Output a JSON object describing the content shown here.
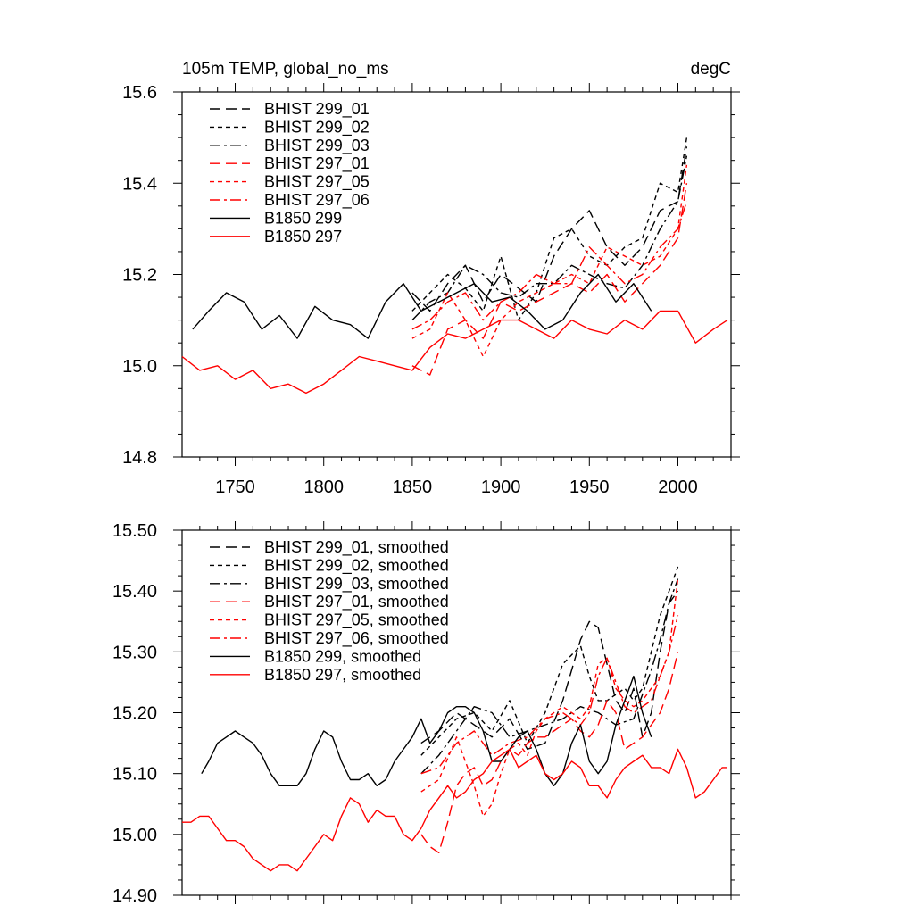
{
  "chart_data": [
    {
      "type": "line",
      "title_left": "105m TEMP, global_no_ms",
      "title_right": "degC",
      "xlim": [
        1720,
        2030
      ],
      "ylim": [
        14.8,
        15.6
      ],
      "xticks": [
        1750,
        1800,
        1850,
        1900,
        1950,
        2000
      ],
      "xtick_labels": [
        "1750",
        "1800",
        "1850",
        "1900",
        "1950",
        "2000"
      ],
      "yticks": [
        14.8,
        15.0,
        15.2,
        15.4,
        15.6
      ],
      "ytick_labels": [
        "14.8",
        "15.0",
        "15.2",
        "15.4",
        "15.6"
      ],
      "series": [
        {
          "name": "BHIST 299_01",
          "color": "#000000",
          "dash": "long-dash",
          "x": [
            1850,
            1860,
            1870,
            1880,
            1890,
            1900,
            1910,
            1920,
            1930,
            1940,
            1950,
            1960,
            1970,
            1980,
            1990,
            2000,
            2005
          ],
          "y": [
            15.16,
            15.12,
            15.18,
            15.22,
            15.14,
            15.2,
            15.17,
            15.14,
            15.24,
            15.3,
            15.34,
            15.26,
            15.22,
            15.26,
            15.34,
            15.36,
            15.48
          ]
        },
        {
          "name": "BHIST 299_02",
          "color": "#000000",
          "dash": "short-dash",
          "x": [
            1850,
            1860,
            1870,
            1880,
            1890,
            1900,
            1910,
            1920,
            1930,
            1940,
            1950,
            1960,
            1970,
            1980,
            1990,
            2000,
            2005
          ],
          "y": [
            15.12,
            15.16,
            15.2,
            15.17,
            15.12,
            15.24,
            15.1,
            15.16,
            15.28,
            15.3,
            15.24,
            15.22,
            15.26,
            15.28,
            15.4,
            15.38,
            15.5
          ]
        },
        {
          "name": "BHIST 299_03",
          "color": "#000000",
          "dash": "dash-dot",
          "x": [
            1850,
            1860,
            1870,
            1880,
            1890,
            1900,
            1910,
            1920,
            1930,
            1940,
            1950,
            1960,
            1970,
            1980,
            1990,
            2000,
            2005
          ],
          "y": [
            15.1,
            15.14,
            15.16,
            15.22,
            15.2,
            15.16,
            15.15,
            15.18,
            15.18,
            15.22,
            15.2,
            15.18,
            15.17,
            15.22,
            15.3,
            15.36,
            15.46
          ]
        },
        {
          "name": "BHIST 297_01",
          "color": "#ff0000",
          "dash": "long-dash",
          "x": [
            1850,
            1860,
            1870,
            1880,
            1890,
            1900,
            1910,
            1920,
            1930,
            1940,
            1950,
            1960,
            1970,
            1980,
            1990,
            2000,
            2005
          ],
          "y": [
            15.0,
            14.98,
            15.08,
            15.1,
            15.06,
            15.14,
            15.12,
            15.14,
            15.16,
            15.18,
            15.16,
            15.2,
            15.14,
            15.18,
            15.22,
            15.28,
            15.4
          ]
        },
        {
          "name": "BHIST 297_05",
          "color": "#ff0000",
          "dash": "short-dash",
          "x": [
            1850,
            1860,
            1870,
            1880,
            1890,
            1900,
            1910,
            1920,
            1930,
            1940,
            1950,
            1960,
            1970,
            1980,
            1990,
            2000,
            2005
          ],
          "y": [
            15.06,
            15.08,
            15.16,
            15.1,
            15.02,
            15.1,
            15.14,
            15.16,
            15.18,
            15.2,
            15.18,
            15.26,
            15.24,
            15.22,
            15.24,
            15.3,
            15.44
          ]
        },
        {
          "name": "BHIST 297_06",
          "color": "#ff0000",
          "dash": "dash-dot",
          "x": [
            1850,
            1860,
            1870,
            1880,
            1890,
            1900,
            1910,
            1920,
            1930,
            1940,
            1950,
            1960,
            1970,
            1980,
            1990,
            2000,
            2005
          ],
          "y": [
            15.08,
            15.1,
            15.14,
            15.16,
            15.1,
            15.14,
            15.16,
            15.2,
            15.18,
            15.18,
            15.26,
            15.22,
            15.18,
            15.2,
            15.26,
            15.3,
            15.36
          ]
        },
        {
          "name": "B1850 299",
          "color": "#000000",
          "dash": "solid",
          "x": [
            1726,
            1735,
            1745,
            1755,
            1765,
            1775,
            1785,
            1795,
            1805,
            1815,
            1825,
            1835,
            1845,
            1855,
            1865,
            1875,
            1885,
            1895,
            1905,
            1915,
            1925,
            1935,
            1945,
            1955,
            1965,
            1975,
            1985
          ],
          "y": [
            15.08,
            15.12,
            15.16,
            15.14,
            15.08,
            15.11,
            15.06,
            15.13,
            15.1,
            15.09,
            15.06,
            15.14,
            15.18,
            15.12,
            15.14,
            15.16,
            15.18,
            15.14,
            15.15,
            15.12,
            15.08,
            15.1,
            15.16,
            15.2,
            15.14,
            15.18,
            15.12
          ]
        },
        {
          "name": "B1850 297",
          "color": "#ff0000",
          "dash": "solid",
          "x": [
            1720,
            1730,
            1740,
            1750,
            1760,
            1770,
            1780,
            1790,
            1800,
            1810,
            1820,
            1830,
            1840,
            1850,
            1860,
            1870,
            1880,
            1890,
            1900,
            1910,
            1920,
            1930,
            1940,
            1950,
            1960,
            1970,
            1980,
            1990,
            2000,
            2010,
            2020,
            2028
          ],
          "y": [
            15.02,
            14.99,
            15.0,
            14.97,
            14.99,
            14.95,
            14.96,
            14.94,
            14.96,
            14.99,
            15.02,
            15.01,
            15.0,
            14.99,
            15.04,
            15.07,
            15.06,
            15.08,
            15.1,
            15.1,
            15.08,
            15.06,
            15.1,
            15.08,
            15.07,
            15.1,
            15.08,
            15.12,
            15.12,
            15.05,
            15.08,
            15.1
          ]
        }
      ]
    },
    {
      "type": "line",
      "xlim": [
        1720,
        2030
      ],
      "ylim": [
        14.9,
        15.5
      ],
      "xticks": [
        1750,
        1800,
        1850,
        1900,
        1950,
        2000
      ],
      "yticks": [
        14.9,
        15.0,
        15.1,
        15.2,
        15.3,
        15.4,
        15.5
      ],
      "ytick_labels": [
        "14.90",
        "15.00",
        "15.10",
        "15.20",
        "15.30",
        "15.40",
        "15.50"
      ],
      "series": [
        {
          "name": "BHIST 299_01, smoothed",
          "color": "#000000",
          "dash": "long-dash",
          "x": [
            1855,
            1865,
            1875,
            1885,
            1895,
            1905,
            1915,
            1925,
            1935,
            1945,
            1950,
            1955,
            1960,
            1965,
            1970,
            1975,
            1980,
            1985,
            1990,
            1995,
            2000
          ],
          "y": [
            15.15,
            15.17,
            15.2,
            15.18,
            15.16,
            15.19,
            15.14,
            15.15,
            15.22,
            15.32,
            15.35,
            15.34,
            15.28,
            15.22,
            15.2,
            15.24,
            15.16,
            15.2,
            15.3,
            15.38,
            15.4
          ]
        },
        {
          "name": "BHIST 299_02, smoothed",
          "color": "#000000",
          "dash": "short-dash",
          "x": [
            1855,
            1865,
            1875,
            1885,
            1895,
            1905,
            1915,
            1925,
            1935,
            1945,
            1950,
            1955,
            1960,
            1965,
            1970,
            1975,
            1980,
            1985,
            1990,
            1995,
            2000
          ],
          "y": [
            15.13,
            15.16,
            15.19,
            15.2,
            15.17,
            15.22,
            15.15,
            15.2,
            15.28,
            15.31,
            15.26,
            15.22,
            15.22,
            15.23,
            15.24,
            15.22,
            15.24,
            15.3,
            15.36,
            15.4,
            15.44
          ]
        },
        {
          "name": "BHIST 299_03, smoothed",
          "color": "#000000",
          "dash": "dash-dot",
          "x": [
            1855,
            1865,
            1875,
            1885,
            1895,
            1905,
            1915,
            1925,
            1935,
            1945,
            1955,
            1965,
            1975,
            1985,
            1990,
            1995,
            2000
          ],
          "y": [
            15.1,
            15.13,
            15.17,
            15.21,
            15.2,
            15.16,
            15.17,
            15.18,
            15.19,
            15.21,
            15.2,
            15.18,
            15.19,
            15.27,
            15.32,
            15.38,
            15.42
          ]
        },
        {
          "name": "BHIST 297_01, smoothed",
          "color": "#ff0000",
          "dash": "long-dash",
          "x": [
            1855,
            1860,
            1865,
            1870,
            1875,
            1880,
            1885,
            1890,
            1895,
            1900,
            1905,
            1910,
            1915,
            1920,
            1925,
            1930,
            1935,
            1940,
            1945,
            1950,
            1955,
            1960,
            1965,
            1970,
            1975,
            1980,
            1985,
            1990,
            1995,
            2000
          ],
          "y": [
            15.0,
            14.98,
            14.97,
            15.02,
            15.08,
            15.1,
            15.11,
            15.08,
            15.09,
            15.12,
            15.14,
            15.13,
            15.15,
            15.16,
            15.16,
            15.17,
            15.18,
            15.19,
            15.17,
            15.16,
            15.18,
            15.22,
            15.2,
            15.14,
            15.15,
            15.16,
            15.18,
            15.2,
            15.24,
            15.3
          ]
        },
        {
          "name": "BHIST 297_05, smoothed",
          "color": "#ff0000",
          "dash": "short-dash",
          "x": [
            1855,
            1865,
            1875,
            1885,
            1890,
            1895,
            1900,
            1905,
            1910,
            1915,
            1920,
            1925,
            1930,
            1935,
            1940,
            1945,
            1950,
            1955,
            1960,
            1965,
            1970,
            1975,
            1980,
            1985,
            1990,
            1995,
            2000
          ],
          "y": [
            15.07,
            15.09,
            15.16,
            15.08,
            15.03,
            15.05,
            15.1,
            15.14,
            15.15,
            15.13,
            15.17,
            15.19,
            15.2,
            15.21,
            15.2,
            15.19,
            15.21,
            15.28,
            15.29,
            15.24,
            15.22,
            15.21,
            15.22,
            15.24,
            15.26,
            15.3,
            15.42
          ]
        },
        {
          "name": "BHIST 297_06, smoothed",
          "color": "#ff0000",
          "dash": "dash-dot",
          "x": [
            1855,
            1865,
            1875,
            1885,
            1895,
            1905,
            1915,
            1925,
            1935,
            1945,
            1950,
            1955,
            1960,
            1965,
            1970,
            1975,
            1980,
            1985,
            1990,
            1995,
            2000
          ],
          "y": [
            15.1,
            15.11,
            15.15,
            15.17,
            15.13,
            15.15,
            15.16,
            15.19,
            15.2,
            15.18,
            15.2,
            15.26,
            15.29,
            15.25,
            15.21,
            15.2,
            15.21,
            15.22,
            15.26,
            15.3,
            15.36
          ]
        },
        {
          "name": "B1850 299, smoothed",
          "color": "#000000",
          "dash": "solid",
          "x": [
            1731,
            1735,
            1740,
            1745,
            1750,
            1755,
            1760,
            1765,
            1770,
            1775,
            1780,
            1785,
            1790,
            1795,
            1800,
            1805,
            1810,
            1815,
            1820,
            1825,
            1830,
            1835,
            1840,
            1845,
            1850,
            1855,
            1860,
            1865,
            1870,
            1875,
            1880,
            1885,
            1890,
            1895,
            1900,
            1905,
            1910,
            1915,
            1920,
            1925,
            1930,
            1935,
            1940,
            1945,
            1950,
            1955,
            1960,
            1965,
            1970,
            1975,
            1980,
            1985
          ],
          "y": [
            15.1,
            15.12,
            15.15,
            15.16,
            15.17,
            15.16,
            15.15,
            15.13,
            15.1,
            15.08,
            15.08,
            15.08,
            15.1,
            15.14,
            15.17,
            15.16,
            15.12,
            15.09,
            15.09,
            15.1,
            15.08,
            15.09,
            15.12,
            15.14,
            15.16,
            15.19,
            15.15,
            15.17,
            15.2,
            15.21,
            15.21,
            15.2,
            15.17,
            15.12,
            15.12,
            15.14,
            15.16,
            15.17,
            15.14,
            15.1,
            15.08,
            15.1,
            15.15,
            15.18,
            15.12,
            15.1,
            15.12,
            15.18,
            15.22,
            15.26,
            15.2,
            15.16
          ]
        },
        {
          "name": "B1850 297, smoothed",
          "color": "#ff0000",
          "dash": "solid",
          "x": [
            1720,
            1725,
            1730,
            1735,
            1740,
            1745,
            1750,
            1755,
            1760,
            1765,
            1770,
            1775,
            1780,
            1785,
            1790,
            1795,
            1800,
            1805,
            1810,
            1815,
            1820,
            1825,
            1830,
            1835,
            1840,
            1845,
            1850,
            1855,
            1860,
            1865,
            1870,
            1875,
            1880,
            1885,
            1890,
            1895,
            1900,
            1905,
            1910,
            1915,
            1920,
            1925,
            1930,
            1935,
            1940,
            1945,
            1950,
            1955,
            1960,
            1965,
            1970,
            1975,
            1980,
            1985,
            1990,
            1995,
            2000,
            2005,
            2010,
            2015,
            2020,
            2025,
            2028
          ],
          "y": [
            15.02,
            15.02,
            15.03,
            15.03,
            15.01,
            14.99,
            14.99,
            14.98,
            14.96,
            14.95,
            14.94,
            14.95,
            14.95,
            14.94,
            14.96,
            14.98,
            15.0,
            14.99,
            15.03,
            15.06,
            15.05,
            15.02,
            15.04,
            15.03,
            15.03,
            15.0,
            14.99,
            15.01,
            15.04,
            15.06,
            15.08,
            15.06,
            15.07,
            15.09,
            15.1,
            15.12,
            15.13,
            15.14,
            15.11,
            15.12,
            15.13,
            15.1,
            15.09,
            15.1,
            15.12,
            15.11,
            15.08,
            15.08,
            15.06,
            15.09,
            15.11,
            15.12,
            15.13,
            15.11,
            15.11,
            15.1,
            15.14,
            15.11,
            15.06,
            15.07,
            15.09,
            15.11,
            15.11
          ]
        }
      ]
    }
  ]
}
